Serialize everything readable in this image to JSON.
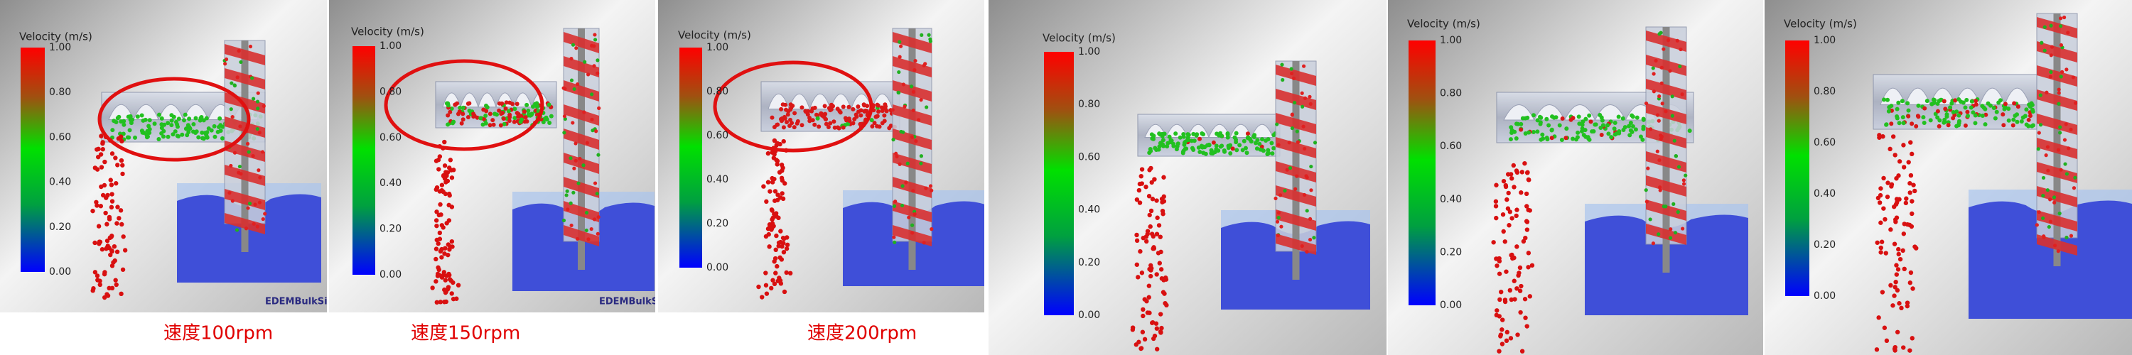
{
  "panels": [
    {
      "legend_title": "Velocity (m/s)",
      "legend_ticks": [
        "1.00",
        "0.80",
        "0.60",
        "0.40",
        "0.20",
        "0.00"
      ],
      "caption": "速度100rpm",
      "watermark": "EDEMBulkSim"
    },
    {
      "legend_title": "Velocity (m/s)",
      "legend_ticks": [
        "1.00",
        "0.80",
        "0.60",
        "0.40",
        "0.20",
        "0.00"
      ],
      "caption": "速度150rpm",
      "watermark": "EDEMBulkSim"
    },
    {
      "legend_title": "Velocity (m/s)",
      "legend_ticks": [
        "1.00",
        "0.80",
        "0.60",
        "0.40",
        "0.20",
        "0.00"
      ],
      "caption": "速度200rpm"
    },
    {
      "legend_title": "Velocity (m/s)",
      "legend_ticks": [
        "1.00",
        "0.80",
        "0.60",
        "0.40",
        "0.20",
        "0.00"
      ]
    },
    {
      "legend_title": "Velocity (m/s)",
      "legend_ticks": [
        "1.00",
        "0.80",
        "0.60",
        "0.40",
        "0.20",
        "0.00"
      ]
    },
    {
      "legend_title": "Velocity (m/s)",
      "legend_ticks": [
        "1.00",
        "0.80",
        "0.60",
        "0.40",
        "0.20",
        "0.00"
      ]
    }
  ]
}
